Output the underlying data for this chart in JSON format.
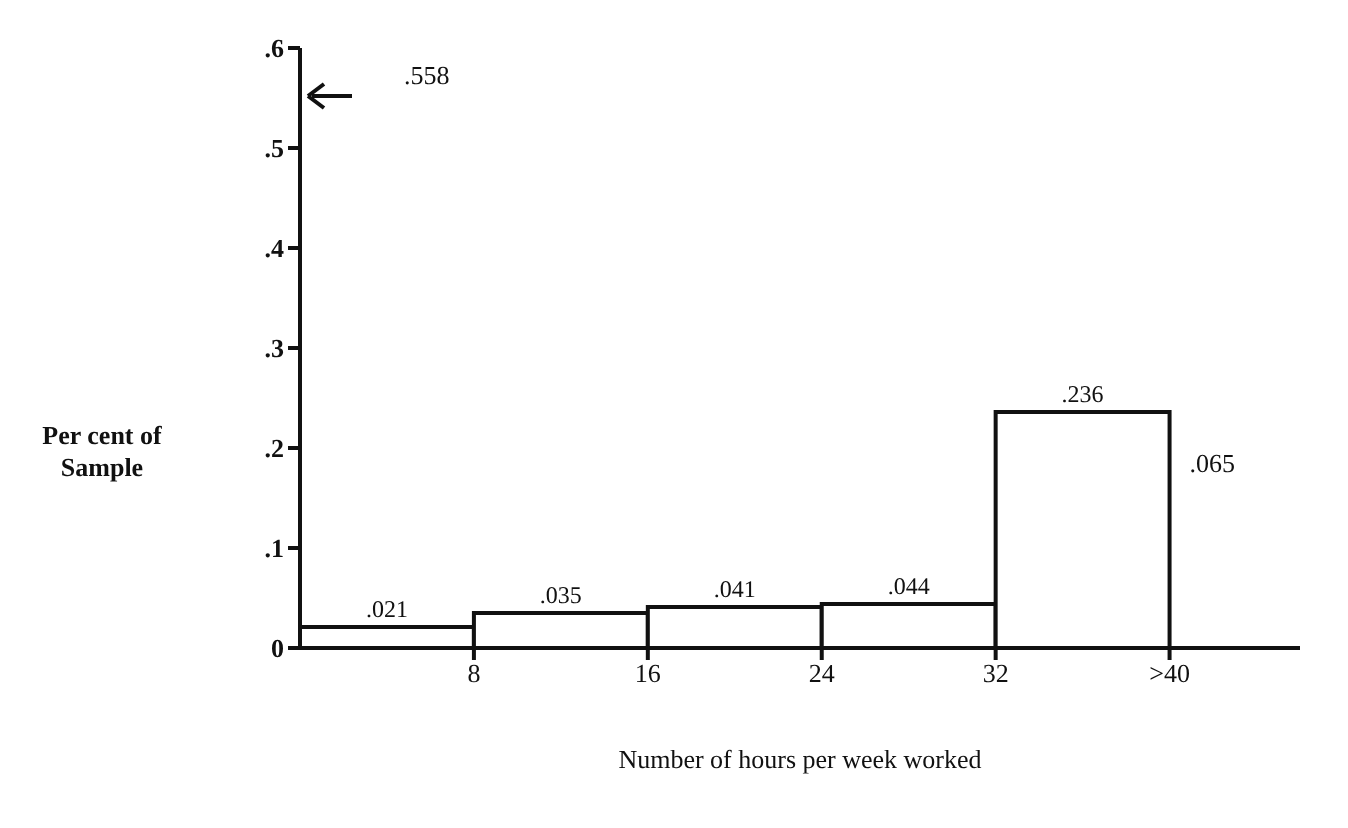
{
  "chart_data": {
    "type": "histogram",
    "xlabel": "Number of hours per week worked",
    "ylabel": "Per cent of Sample",
    "bins": [
      0,
      8,
      16,
      24,
      32,
      40
    ],
    "values": [
      0.021,
      0.035,
      0.041,
      0.044,
      0.236
    ],
    "value_labels": [
      ".021",
      ".035",
      ".041",
      ".044",
      ".236"
    ],
    "color": "#ffffff",
    "xlim": [
      0,
      46
    ],
    "xticks": [
      8,
      16,
      24,
      32,
      {
        "value": 40,
        "label": ">40"
      }
    ],
    "ylim": [
      0,
      0.6
    ],
    "yticks": [
      0,
      {
        "value": 0.1,
        "label": ".1"
      },
      {
        "value": 0.2,
        "label": ".2"
      },
      {
        "value": 0.3,
        "label": ".3"
      },
      {
        "value": 0.4,
        "label": ".4"
      },
      {
        "value": 0.5,
        "label": ".5"
      },
      {
        "value": 0.6,
        "label": ".6"
      }
    ],
    "annotations": [
      ".558",
      ".065"
    ],
    "grid": false,
    "legend": false
  }
}
